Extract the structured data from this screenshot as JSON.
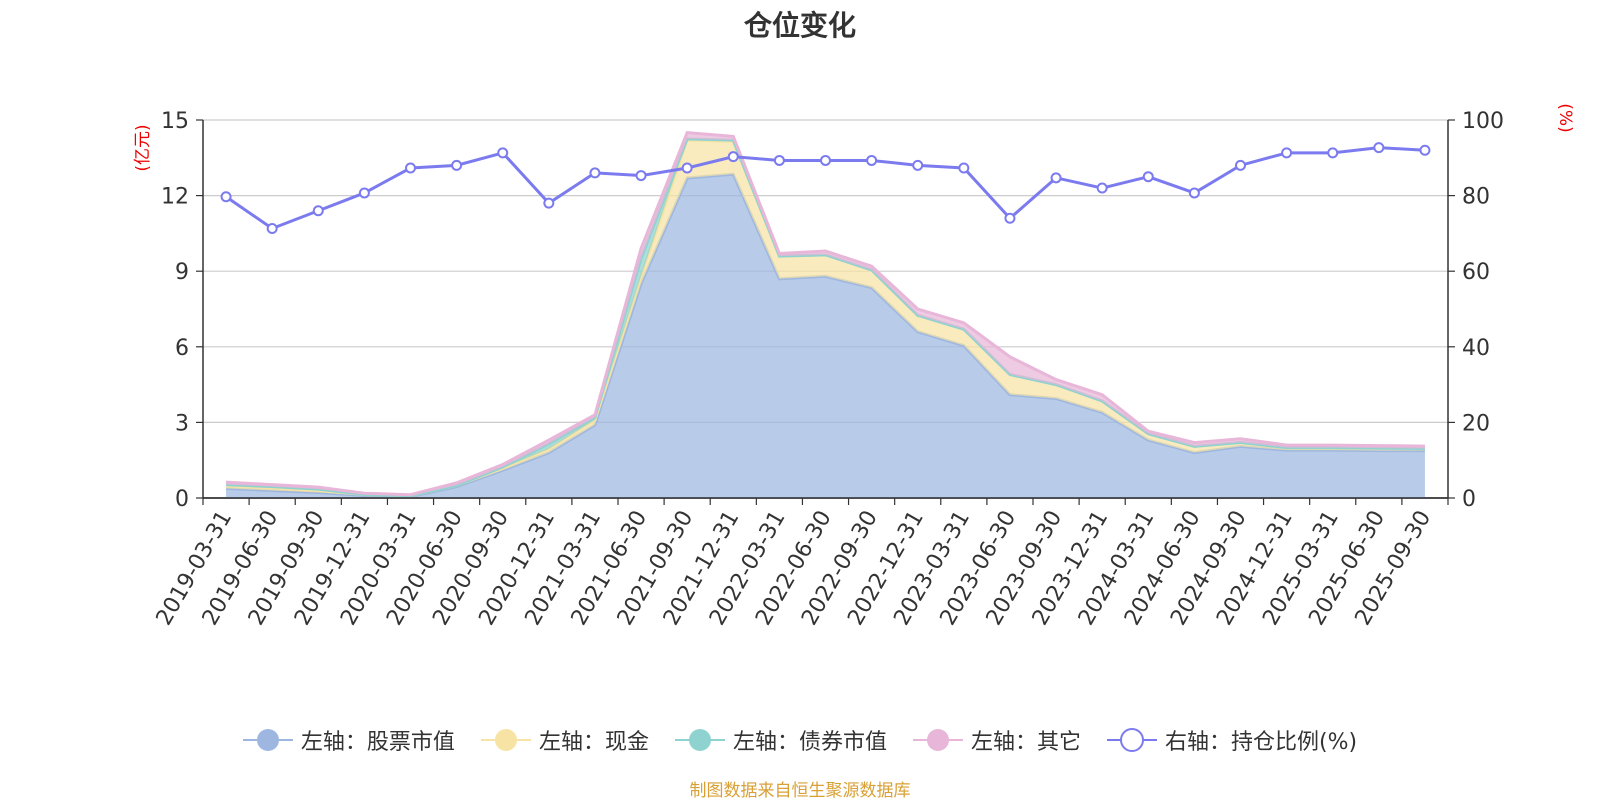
{
  "chart_data": {
    "type": "area",
    "title": "仓位变化",
    "categories": [
      "2019-03-31",
      "2019-06-30",
      "2019-09-30",
      "2019-12-31",
      "2020-03-31",
      "2020-06-30",
      "2020-09-30",
      "2020-12-31",
      "2021-03-31",
      "2021-06-30",
      "2021-09-30",
      "2021-12-31",
      "2022-03-31",
      "2022-06-30",
      "2022-09-30",
      "2022-12-31",
      "2023-03-31",
      "2023-06-30",
      "2023-09-30",
      "2023-12-31",
      "2024-03-31",
      "2024-06-30",
      "2024-09-30",
      "2024-12-31",
      "2025-03-31",
      "2025-06-30",
      "2025-09-30"
    ],
    "left_axis": {
      "label": "(亿元)",
      "ylim": [
        0,
        15
      ],
      "ticks": [
        "0",
        "3",
        "6",
        "9",
        "12",
        "15"
      ]
    },
    "right_axis": {
      "label": "(%)",
      "ylim": [
        0,
        100
      ],
      "ticks": [
        "0",
        "20",
        "40",
        "60",
        "80",
        "100"
      ]
    },
    "series": [
      {
        "name": "左轴：股票市值",
        "axis": "left",
        "kind": "stack",
        "color": "#9db7e0",
        "values": [
          0.38,
          0.3,
          0.22,
          0.1,
          0.06,
          0.45,
          1.1,
          1.8,
          2.9,
          8.5,
          12.7,
          12.85,
          8.7,
          8.8,
          8.35,
          6.6,
          6.05,
          4.1,
          3.95,
          3.4,
          2.3,
          1.8,
          2.05,
          1.9,
          1.9,
          1.88,
          1.88
        ]
      },
      {
        "name": "左轴：现金",
        "axis": "left",
        "kind": "stack",
        "color": "#f7e3a3",
        "values": [
          0.1,
          0.1,
          0.08,
          0.04,
          0.03,
          0.05,
          0.08,
          0.15,
          0.2,
          0.3,
          1.5,
          1.3,
          0.9,
          0.85,
          0.7,
          0.65,
          0.65,
          0.8,
          0.55,
          0.45,
          0.25,
          0.25,
          0.15,
          0.1,
          0.1,
          0.1,
          0.08
        ]
      },
      {
        "name": "左轴：债券市值",
        "axis": "left",
        "kind": "stack",
        "color": "#8fd3d1",
        "values": [
          0.05,
          0.05,
          0.05,
          0.0,
          0.0,
          0.0,
          0.05,
          0.2,
          0.1,
          0.7,
          0.05,
          0.05,
          0.0,
          0.0,
          0.0,
          0.0,
          0.0,
          0.0,
          0.0,
          0.0,
          0.0,
          0.0,
          0.0,
          0.0,
          0.0,
          0.0,
          0.0
        ]
      },
      {
        "name": "左轴：其它",
        "axis": "left",
        "kind": "stack",
        "color": "#e8b6d8",
        "values": [
          0.1,
          0.08,
          0.08,
          0.05,
          0.04,
          0.1,
          0.1,
          0.15,
          0.1,
          0.4,
          0.25,
          0.15,
          0.1,
          0.15,
          0.15,
          0.25,
          0.25,
          0.7,
          0.2,
          0.25,
          0.1,
          0.15,
          0.15,
          0.1,
          0.1,
          0.1,
          0.1
        ]
      },
      {
        "name": "右轴：持仓比例(%)",
        "axis": "right",
        "kind": "line",
        "color": "#7b7bef",
        "values": [
          79.7,
          71.3,
          76.0,
          80.7,
          87.3,
          88.0,
          91.3,
          78.0,
          86.0,
          85.3,
          87.3,
          90.3,
          89.3,
          89.3,
          89.3,
          88.0,
          87.3,
          74.0,
          84.7,
          82.0,
          85.0,
          80.7,
          88.0,
          91.3,
          91.3,
          92.7,
          92.0
        ]
      }
    ]
  },
  "footer": {
    "source_text": "制图数据来自恒生聚源数据库"
  }
}
